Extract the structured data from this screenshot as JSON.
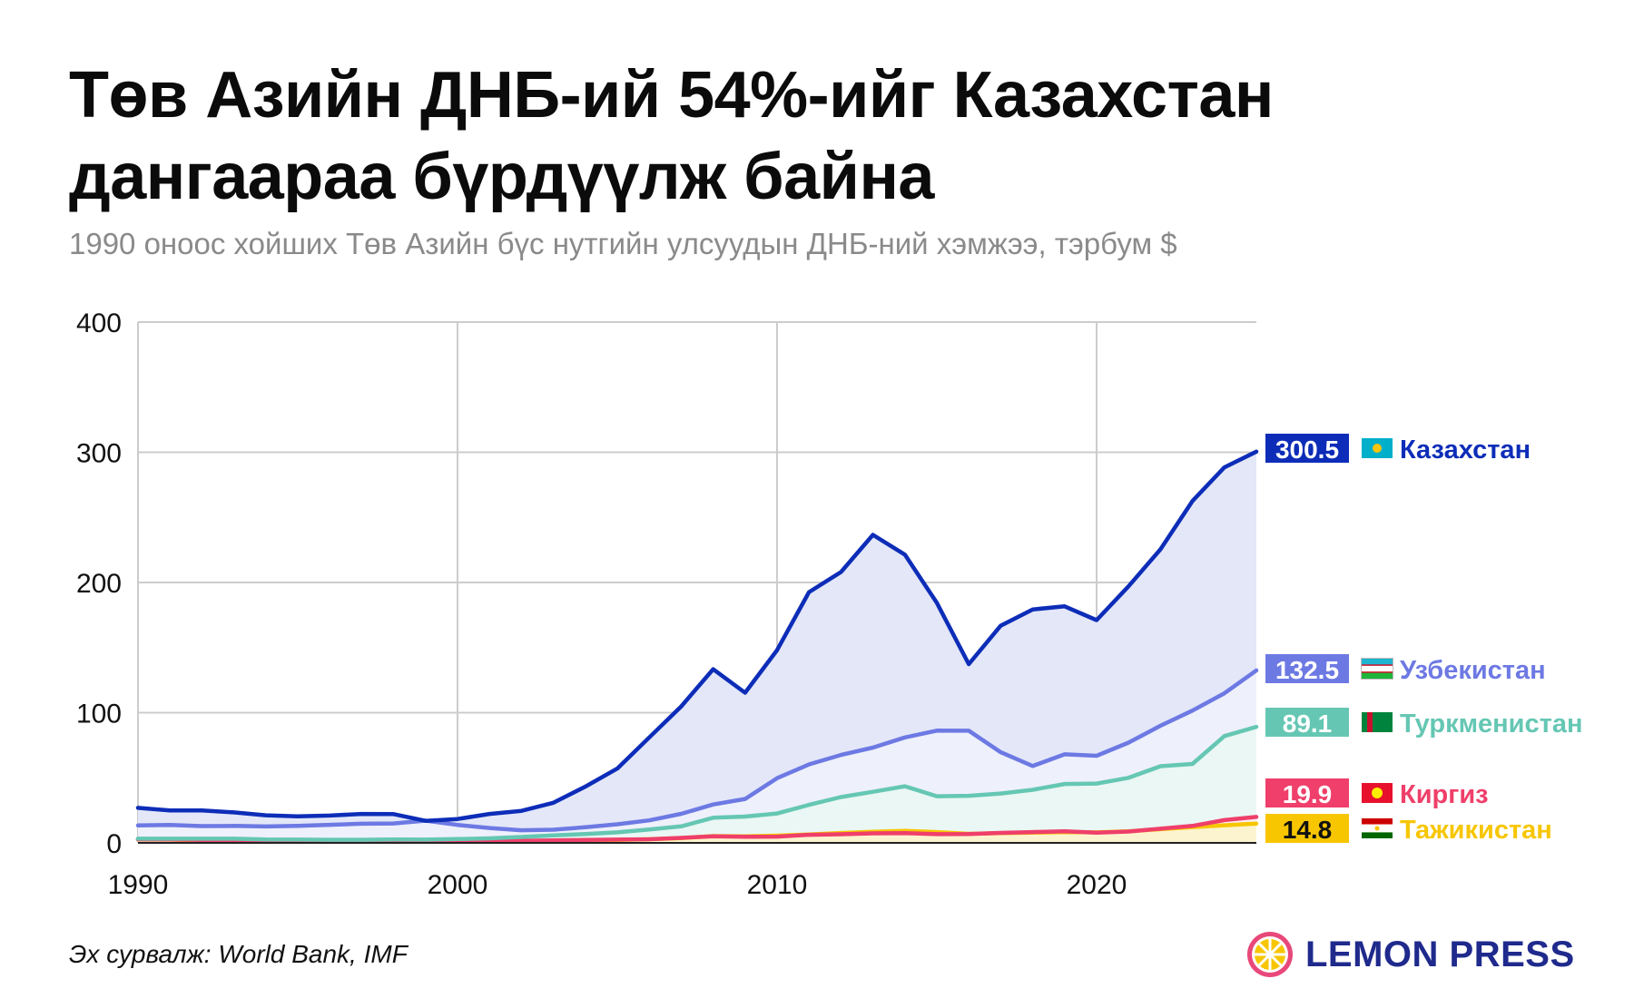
{
  "title": "Төв Азийн ДНБ-ий 54%-ийг Казахстан дангаараа бүрдүүлж байна",
  "subtitle": "1990 оноос хойших Төв Азийн бүс нутгийн улсуудын ДНБ-ний хэмжээ, тэрбум $",
  "source": "Эх сурвалж: World Bank, IMF",
  "brand": {
    "name": "LEMON PRESS",
    "icon": "lemon-icon",
    "colors": {
      "ring": "#e8487a",
      "fill": "#f7c600",
      "text": "#1f2a8c"
    }
  },
  "chart_data": {
    "type": "line",
    "xlim": [
      1990,
      2025
    ],
    "ylim": [
      0,
      400
    ],
    "x_ticks": [
      1990,
      2000,
      2010,
      2020
    ],
    "y_ticks": [
      0,
      100,
      200,
      300,
      400
    ],
    "grid": true,
    "x": [
      1990,
      1991,
      1992,
      1993,
      1994,
      1995,
      1996,
      1997,
      1998,
      1999,
      2000,
      2001,
      2002,
      2003,
      2004,
      2005,
      2006,
      2007,
      2008,
      2009,
      2010,
      2011,
      2012,
      2013,
      2014,
      2015,
      2016,
      2017,
      2018,
      2019,
      2020,
      2021,
      2022,
      2023,
      2024,
      2025
    ],
    "series": [
      {
        "name": "Казахстан",
        "label": "300.5",
        "flag": "kazakhstan-flag-icon",
        "color": "#0d2db8",
        "fill": "#e3e7f8",
        "values": [
          26.9,
          24.9,
          24.9,
          23.4,
          21.2,
          20.4,
          21.0,
          22.2,
          22.1,
          16.9,
          18.3,
          22.2,
          24.6,
          30.8,
          43.2,
          57.1,
          81.0,
          104.8,
          133.4,
          115.3,
          148.0,
          192.6,
          208.0,
          236.6,
          221.4,
          184.4,
          137.3,
          166.8,
          179.3,
          181.7,
          171.1,
          197.1,
          225.5,
          262.6,
          288.4,
          300.5
        ]
      },
      {
        "name": "Узбекистан",
        "label": "132.5",
        "flag": "uzbekistan-flag-icon",
        "color": "#6d79e3",
        "fill": "#eef0fb",
        "values": [
          13.4,
          13.7,
          12.9,
          13.0,
          12.6,
          13.0,
          13.9,
          14.7,
          14.9,
          17.1,
          13.8,
          11.4,
          9.7,
          10.1,
          12.0,
          14.3,
          17.3,
          22.3,
          29.5,
          33.7,
          49.7,
          60.3,
          67.5,
          73.2,
          81.0,
          86.2,
          86.1,
          69.6,
          59.0,
          68.0,
          66.9,
          77.0,
          90.0,
          101.6,
          114.9,
          132.5
        ]
      },
      {
        "name": "Туркменистан",
        "label": "89.1",
        "flag": "turkmenistan-flag-icon",
        "color": "#65c7b3",
        "fill": "#eaf7f4",
        "values": [
          3.2,
          3.2,
          3.2,
          3.2,
          2.6,
          2.5,
          2.4,
          2.4,
          2.6,
          2.5,
          2.9,
          3.5,
          4.5,
          5.8,
          6.8,
          8.1,
          10.3,
          12.7,
          19.3,
          20.2,
          22.6,
          29.2,
          35.2,
          39.2,
          43.5,
          35.8,
          36.2,
          37.9,
          40.8,
          45.2,
          45.6,
          50.0,
          58.9,
          60.6,
          82.0,
          89.1
        ]
      },
      {
        "name": "Киргиз",
        "label": "19.9",
        "flag": "kyrgyzstan-flag-icon",
        "color": "#ef3f6a",
        "fill": "#fdecef",
        "values": [
          2.7,
          2.6,
          2.3,
          2.0,
          1.7,
          1.5,
          1.8,
          1.8,
          1.6,
          1.2,
          1.4,
          1.5,
          1.6,
          1.9,
          2.2,
          2.5,
          2.8,
          3.8,
          5.1,
          4.7,
          4.8,
          6.2,
          6.6,
          7.3,
          7.5,
          6.7,
          6.8,
          7.7,
          8.3,
          8.9,
          7.8,
          8.7,
          10.9,
          13.0,
          17.5,
          19.9
        ]
      },
      {
        "name": "Тажикистан",
        "label": "14.8",
        "flag": "tajikistan-flag-icon",
        "color": "#f7c600",
        "fill": "#fcf4cf",
        "values": [
          2.6,
          2.5,
          1.9,
          1.6,
          1.3,
          1.2,
          1.0,
          0.9,
          1.3,
          1.1,
          0.9,
          1.1,
          1.2,
          1.6,
          2.1,
          2.3,
          2.8,
          3.7,
          5.2,
          5.0,
          5.6,
          6.5,
          7.6,
          8.5,
          9.2,
          8.3,
          7.0,
          7.5,
          7.8,
          8.3,
          8.1,
          8.9,
          10.5,
          12.1,
          13.5,
          14.8
        ]
      }
    ]
  }
}
